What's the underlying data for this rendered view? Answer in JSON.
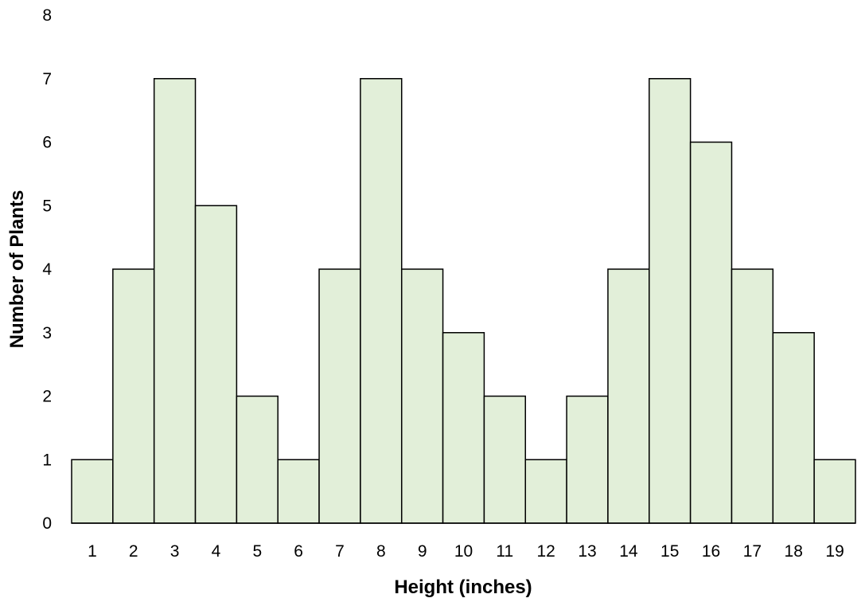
{
  "chart_data": {
    "type": "bar",
    "categories": [
      "1",
      "2",
      "3",
      "4",
      "5",
      "6",
      "7",
      "8",
      "9",
      "10",
      "11",
      "12",
      "13",
      "14",
      "15",
      "16",
      "17",
      "18",
      "19"
    ],
    "values": [
      1,
      4,
      7,
      5,
      2,
      1,
      4,
      7,
      4,
      3,
      2,
      1,
      2,
      4,
      7,
      6,
      4,
      3,
      1
    ],
    "title": "",
    "xlabel": "Height (inches)",
    "ylabel": "Number of Plants",
    "ylim": [
      0,
      8
    ],
    "yticks": [
      0,
      1,
      2,
      3,
      4,
      5,
      6,
      7,
      8
    ],
    "grid": false,
    "legend": "none",
    "bar_fill": "#e2efd9",
    "bar_stroke": "#000000"
  }
}
